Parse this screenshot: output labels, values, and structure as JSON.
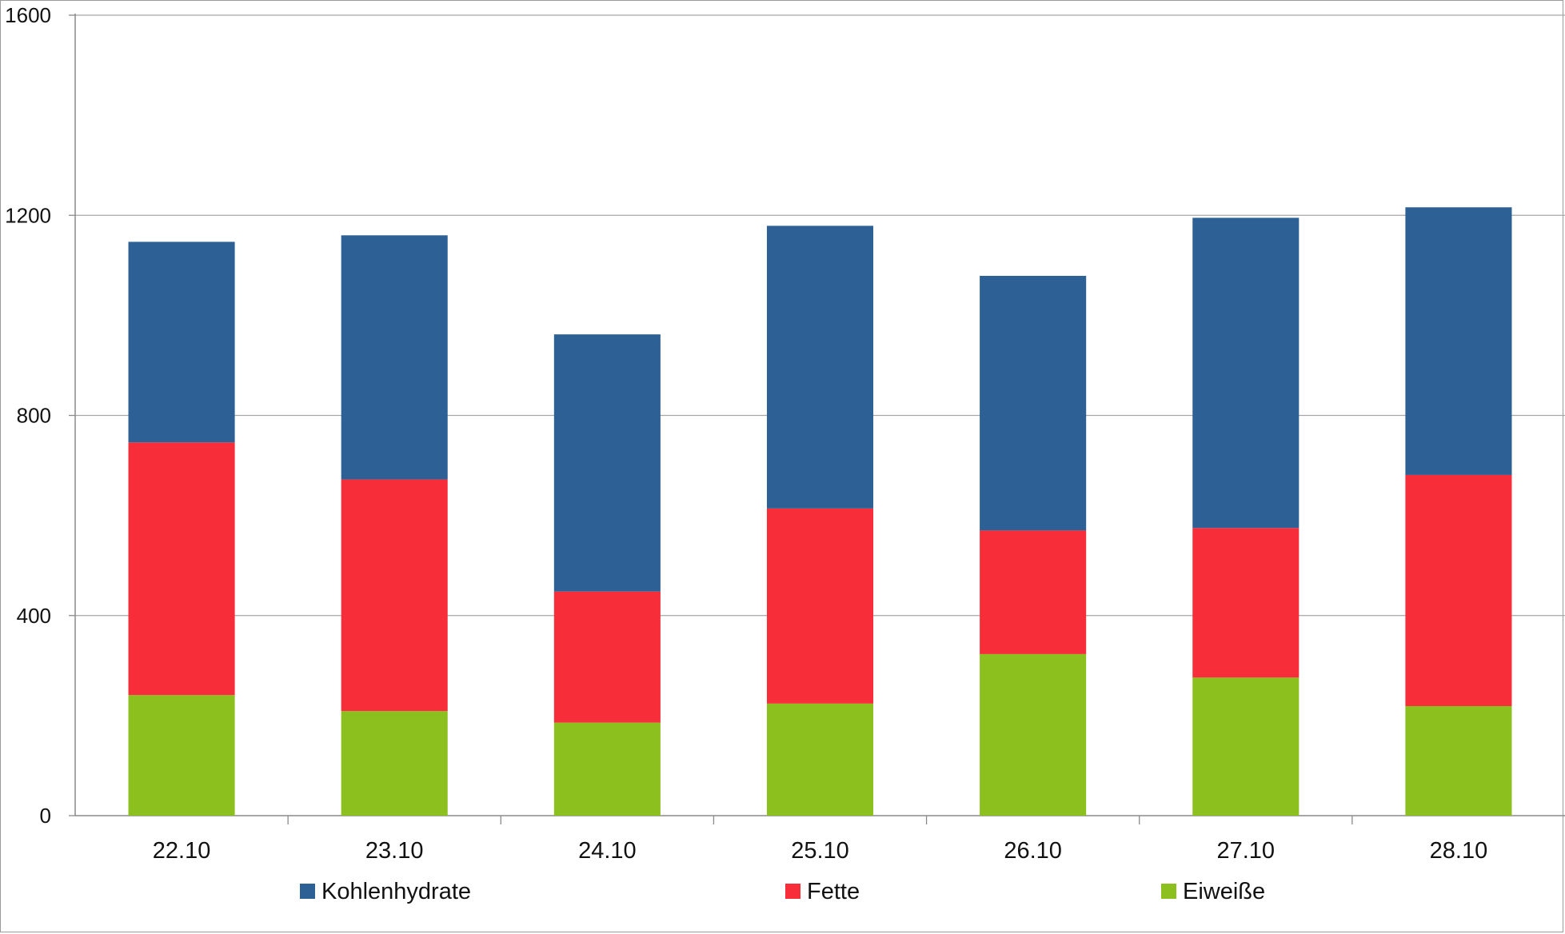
{
  "chart_data": {
    "type": "bar",
    "stacked": true,
    "title": "",
    "xlabel": "",
    "ylabel": "",
    "categories": [
      "22.10",
      "23.10",
      "24.10",
      "25.10",
      "26.10",
      "27.10",
      "28.10"
    ],
    "series": [
      {
        "name": "Eiweiße",
        "color": "#8cc01e",
        "values": [
          241,
          209,
          186,
          224,
          323,
          276,
          219
        ]
      },
      {
        "name": "Fette",
        "color": "#f72e3a",
        "values": [
          505,
          463,
          262,
          390,
          247,
          299,
          462
        ]
      },
      {
        "name": "Kohlenhydrate",
        "color": "#2d6195",
        "values": [
          401,
          488,
          514,
          565,
          509,
          620,
          535
        ]
      }
    ],
    "legend_order": [
      "Kohlenhydrate",
      "Fette",
      "Eiweiße"
    ],
    "legend_position": "bottom",
    "ylim": [
      0,
      1600
    ],
    "yticks": [
      "0",
      "400",
      "800",
      "1200",
      "1600"
    ],
    "grid": true
  }
}
